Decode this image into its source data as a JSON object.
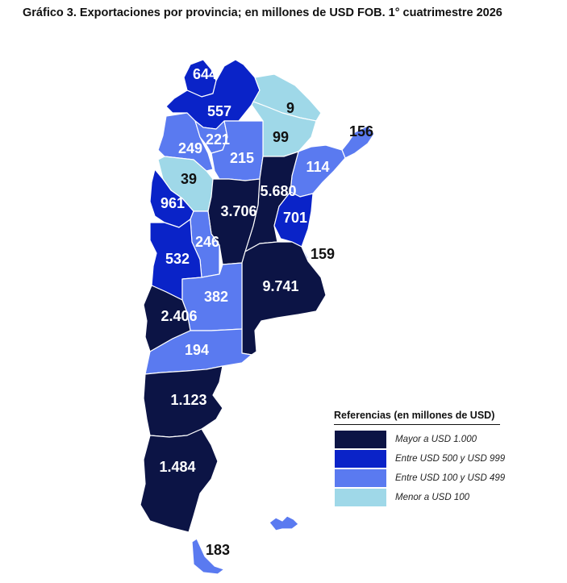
{
  "title": "Gráfico 3. Exportaciones por provincia; en millones de USD FOB. 1° cuatrimestre 2026",
  "colors": {
    "mayor_1000": "#0c1445",
    "entre_500_999": "#0a23c8",
    "entre_100_499": "#5a7af0",
    "menor_100": "#9fd8e8"
  },
  "provinces": [
    {
      "id": "jujuy",
      "value": "644",
      "category": "entre_500_999"
    },
    {
      "id": "salta",
      "value": "557",
      "category": "entre_500_999"
    },
    {
      "id": "formosa",
      "value": "9",
      "category": "menor_100"
    },
    {
      "id": "chaco",
      "value": "99",
      "category": "menor_100"
    },
    {
      "id": "misiones",
      "value": "156",
      "category": "entre_100_499"
    },
    {
      "id": "catamarca",
      "value": "249",
      "category": "entre_100_499"
    },
    {
      "id": "tucuman",
      "value": "221",
      "category": "entre_100_499"
    },
    {
      "id": "santiago-del-estero",
      "value": "215",
      "category": "entre_100_499"
    },
    {
      "id": "corrientes",
      "value": "114",
      "category": "entre_100_499"
    },
    {
      "id": "la-rioja",
      "value": "39",
      "category": "menor_100"
    },
    {
      "id": "santa-fe",
      "value": "5.680",
      "category": "mayor_1000"
    },
    {
      "id": "san-juan",
      "value": "961",
      "category": "entre_500_999"
    },
    {
      "id": "cordoba",
      "value": "3.706",
      "category": "mayor_1000"
    },
    {
      "id": "entre-rios",
      "value": "701",
      "category": "entre_500_999"
    },
    {
      "id": "san-luis",
      "value": "246",
      "category": "entre_100_499"
    },
    {
      "id": "caba",
      "value": "159",
      "category": "entre_100_499"
    },
    {
      "id": "mendoza",
      "value": "532",
      "category": "entre_500_999"
    },
    {
      "id": "buenos-aires",
      "value": "9.741",
      "category": "mayor_1000"
    },
    {
      "id": "la-pampa",
      "value": "382",
      "category": "entre_100_499"
    },
    {
      "id": "neuquen",
      "value": "2.406",
      "category": "mayor_1000"
    },
    {
      "id": "rio-negro",
      "value": "194",
      "category": "entre_100_499"
    },
    {
      "id": "chubut",
      "value": "1.123",
      "category": "mayor_1000"
    },
    {
      "id": "santa-cruz",
      "value": "1.484",
      "category": "mayor_1000"
    },
    {
      "id": "tierra-del-fuego",
      "value": "183",
      "category": "entre_100_499"
    }
  ],
  "legend": {
    "title": "Referencias (en millones de USD)",
    "items": [
      {
        "category": "mayor_1000",
        "label": "Mayor a USD 1.000"
      },
      {
        "category": "entre_500_999",
        "label": "Entre USD 500 y USD 999"
      },
      {
        "category": "entre_100_499",
        "label": "Entre USD 100 y USD 499"
      },
      {
        "category": "menor_100",
        "label": "Menor a USD 100"
      }
    ]
  }
}
